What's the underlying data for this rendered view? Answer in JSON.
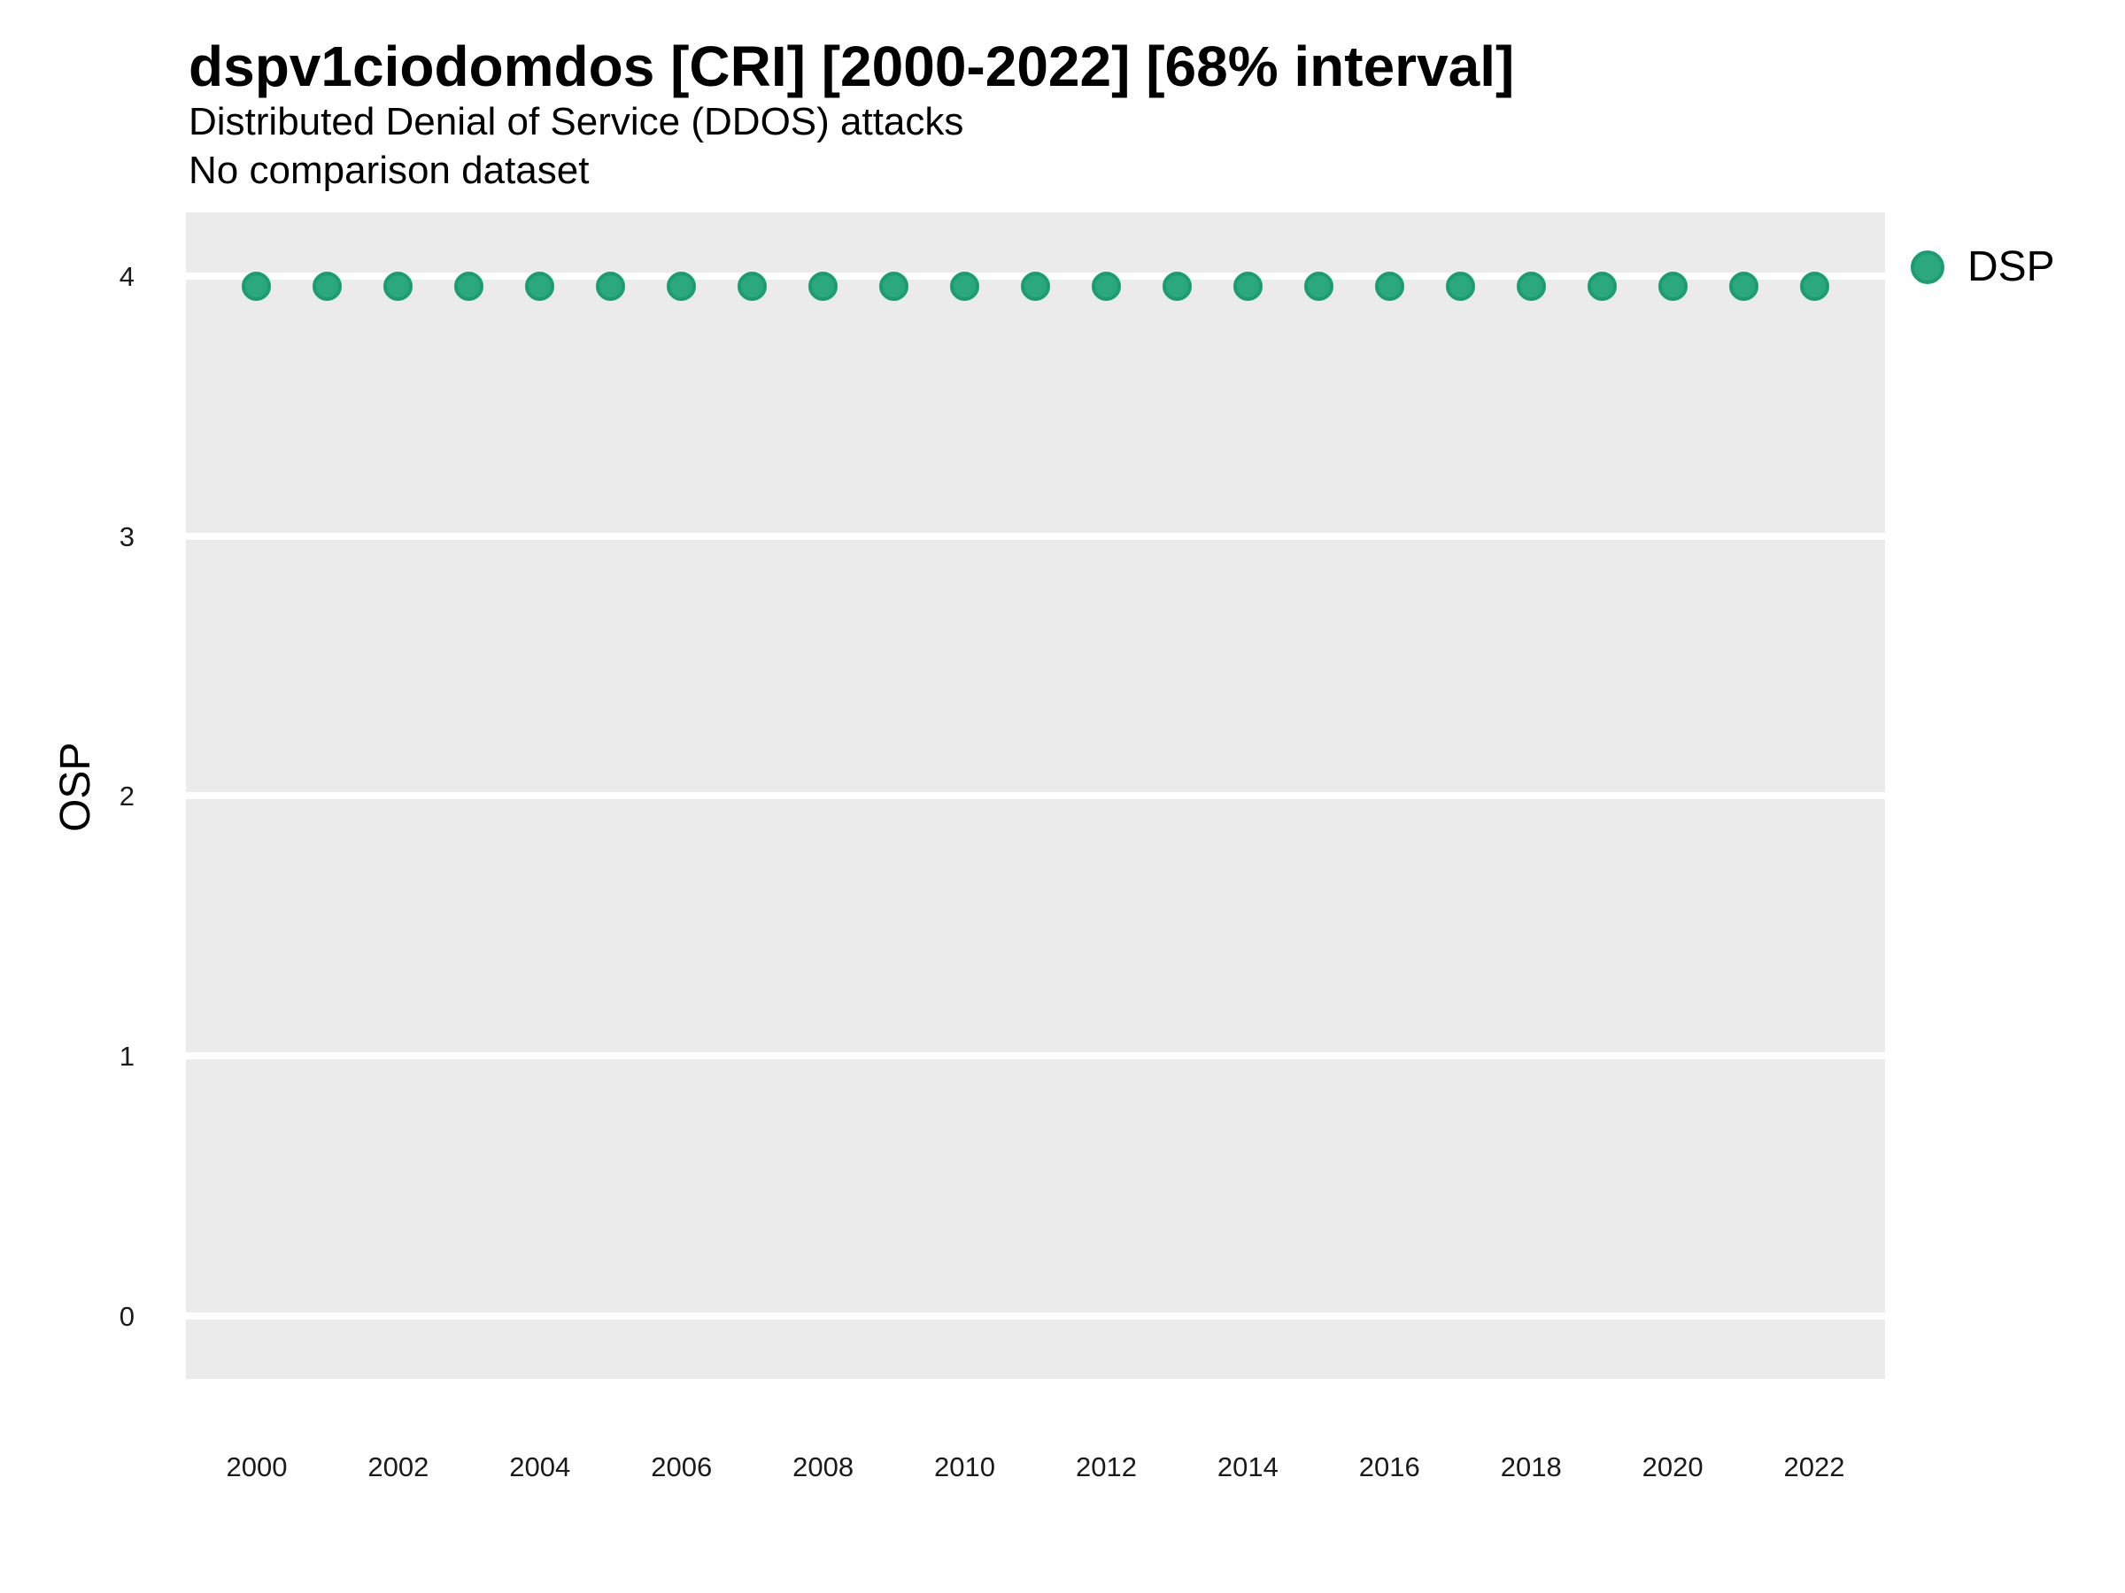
{
  "header": {
    "title": "dspv1ciodomdos [CRI] [2000-2022] [68% interval]",
    "subtitle": "Distributed Denial of Service (DDOS) attacks",
    "note": "No comparison dataset"
  },
  "y_axis_label": "OSP",
  "legend": {
    "position": "right",
    "items": [
      {
        "label": "DSP",
        "color": "#2BA87D"
      }
    ]
  },
  "chart_data": {
    "type": "scatter",
    "title": "dspv1ciodomdos [CRI] [2000-2022] [68% interval]",
    "subtitle": "Distributed Denial of Service (DDOS) attacks",
    "note": "No comparison dataset",
    "xlabel": "",
    "ylabel": "OSP",
    "x": [
      2000,
      2001,
      2002,
      2003,
      2004,
      2005,
      2006,
      2007,
      2008,
      2009,
      2010,
      2011,
      2012,
      2013,
      2014,
      2015,
      2016,
      2017,
      2018,
      2019,
      2020,
      2021,
      2022
    ],
    "series": [
      {
        "name": "DSP",
        "values": [
          3.96,
          3.96,
          3.96,
          3.96,
          3.96,
          3.96,
          3.96,
          3.96,
          3.96,
          3.96,
          3.96,
          3.96,
          3.96,
          3.96,
          3.96,
          3.96,
          3.96,
          3.96,
          3.96,
          3.96,
          3.96,
          3.96,
          3.96
        ]
      }
    ],
    "x_ticks": [
      2000,
      2002,
      2004,
      2006,
      2008,
      2010,
      2012,
      2014,
      2016,
      2018,
      2020,
      2022
    ],
    "y_ticks": [
      0,
      1,
      2,
      3,
      4
    ],
    "xlim": [
      1999,
      2023
    ],
    "ylim": [
      -0.242,
      4.245
    ],
    "grid": "horizontal-major-only",
    "legend_position": "right",
    "colors": {
      "panel_background": "#EBEBEB",
      "gridline": "#FFFFFF",
      "point_fill": "#2BA87D",
      "point_stroke": "#1A9D70",
      "text": "#000000",
      "tick_text": "#1a1a1a"
    }
  }
}
